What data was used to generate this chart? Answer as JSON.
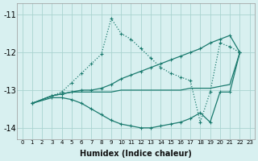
{
  "xlabel": "Humidex (Indice chaleur)",
  "bg_color": "#d8f0f0",
  "grid_color": "#aad4d0",
  "line_color": "#1a7a6e",
  "xlim": [
    -0.5,
    23.5
  ],
  "ylim": [
    -14.3,
    -10.7
  ],
  "yticks": [
    -14,
    -13,
    -12,
    -11
  ],
  "xticks": [
    0,
    1,
    2,
    3,
    4,
    5,
    6,
    7,
    8,
    9,
    10,
    11,
    12,
    13,
    14,
    15,
    16,
    17,
    18,
    19,
    20,
    21,
    22,
    23
  ],
  "line1_x": [
    1,
    3,
    4,
    5,
    6,
    7,
    8,
    9,
    10,
    11,
    12,
    13,
    14,
    15,
    16,
    17,
    18,
    19,
    20,
    21,
    22
  ],
  "line1_y": [
    -13.35,
    -13.15,
    -13.05,
    -12.8,
    -12.55,
    -12.3,
    -12.05,
    -11.1,
    -11.5,
    -11.65,
    -11.9,
    -12.15,
    -12.4,
    -12.55,
    -12.65,
    -12.75,
    -13.85,
    -13.05,
    -11.75,
    -11.85,
    -12.0
  ],
  "line1_style": "dotted",
  "line1_marker": true,
  "line2_x": [
    1,
    3,
    4,
    5,
    6,
    7,
    8,
    9,
    10,
    11,
    12,
    13,
    14,
    15,
    16,
    17,
    18,
    19,
    20,
    21,
    22
  ],
  "line2_y": [
    -13.35,
    -13.15,
    -13.1,
    -13.05,
    -13.0,
    -13.0,
    -12.95,
    -12.85,
    -12.7,
    -12.6,
    -12.5,
    -12.4,
    -12.3,
    -12.2,
    -12.1,
    -12.0,
    -11.9,
    -11.75,
    -11.65,
    -11.55,
    -12.0
  ],
  "line2_style": "solid",
  "line2_marker": true,
  "line3_x": [
    1,
    3,
    4,
    5,
    6,
    7,
    8,
    9,
    10,
    11,
    12,
    13,
    14,
    15,
    16,
    17,
    18,
    19,
    20,
    21,
    22
  ],
  "line3_y": [
    -13.35,
    -13.15,
    -13.1,
    -13.05,
    -13.05,
    -13.05,
    -13.05,
    -13.05,
    -13.0,
    -13.0,
    -13.0,
    -13.0,
    -13.0,
    -13.0,
    -13.0,
    -12.95,
    -12.95,
    -12.95,
    -12.9,
    -12.85,
    -12.0
  ],
  "line3_style": "solid",
  "line3_marker": false,
  "line4_x": [
    1,
    3,
    4,
    5,
    6,
    7,
    8,
    9,
    10,
    11,
    12,
    13,
    14,
    15,
    16,
    17,
    18,
    19,
    20,
    21,
    22
  ],
  "line4_y": [
    -13.35,
    -13.2,
    -13.2,
    -13.25,
    -13.35,
    -13.5,
    -13.65,
    -13.8,
    -13.9,
    -13.95,
    -14.0,
    -14.0,
    -13.95,
    -13.9,
    -13.85,
    -13.75,
    -13.6,
    -13.85,
    -13.05,
    -13.05,
    -12.0
  ],
  "line4_style": "solid",
  "line4_marker": true
}
